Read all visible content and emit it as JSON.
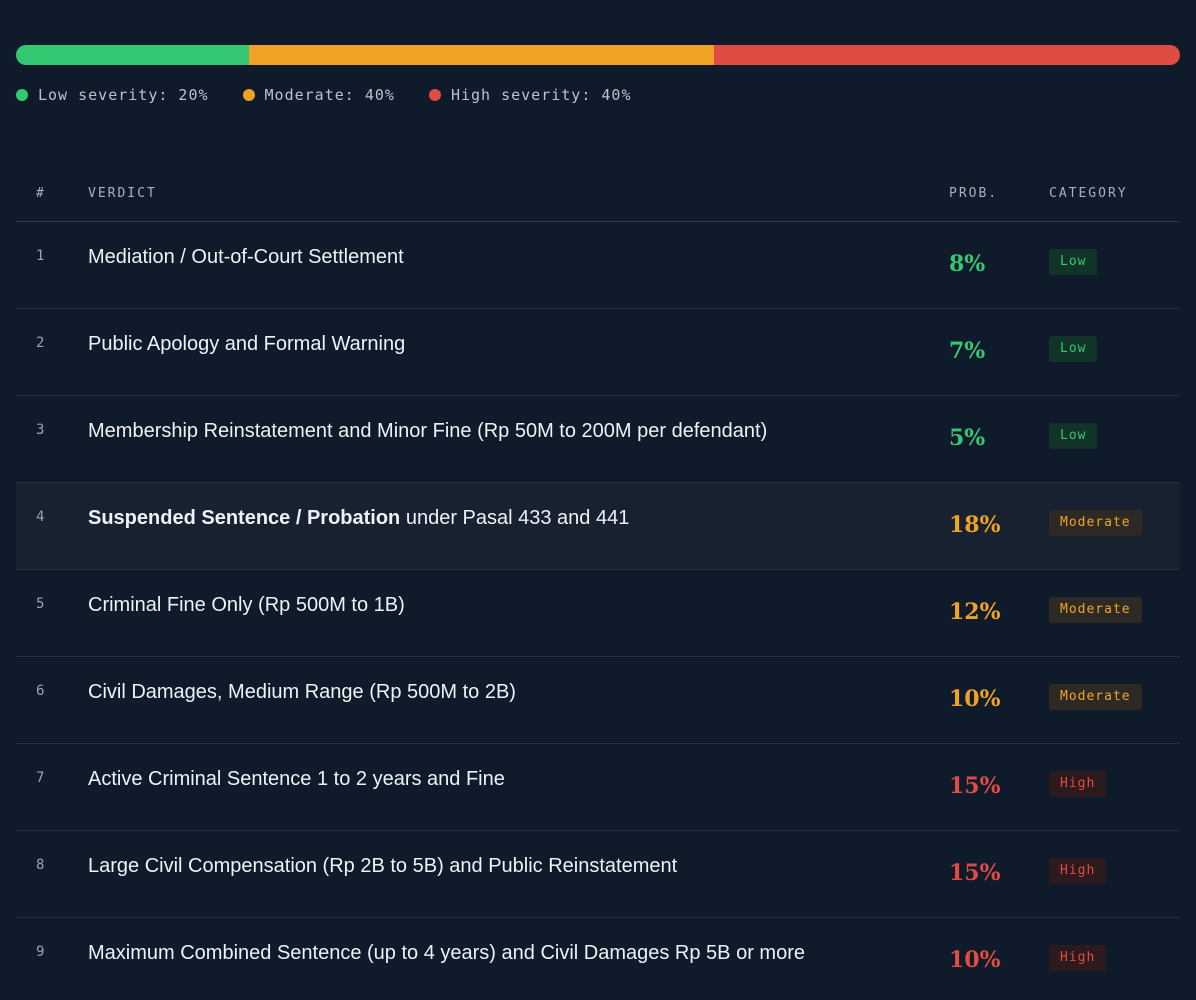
{
  "severity": {
    "segments": [
      {
        "key": "low",
        "label": "Low severity: 20%",
        "percent": 20,
        "color": "#35c873"
      },
      {
        "key": "moderate",
        "label": "Moderate: 40%",
        "percent": 40,
        "color": "#f0a225"
      },
      {
        "key": "high",
        "label": "High severity: 40%",
        "percent": 40,
        "color": "#e04b43"
      }
    ]
  },
  "table": {
    "headers": {
      "num": "#",
      "verdict": "VERDICT",
      "prob": "PROB.",
      "category": "CATEGORY"
    },
    "rows": [
      {
        "num": "1",
        "verdict_bold": "",
        "verdict": "Mediation / Out-of-Court Settlement",
        "prob": "8%",
        "category": "Low",
        "level": "low"
      },
      {
        "num": "2",
        "verdict_bold": "",
        "verdict": "Public Apology and Formal Warning",
        "prob": "7%",
        "category": "Low",
        "level": "low"
      },
      {
        "num": "3",
        "verdict_bold": "",
        "verdict": "Membership Reinstatement and Minor Fine (Rp 50M to 200M per defendant)",
        "prob": "5%",
        "category": "Low",
        "level": "low"
      },
      {
        "num": "4",
        "verdict_bold": "Suspended Sentence / Probation",
        "verdict": " under Pasal 433 and 441",
        "prob": "18%",
        "category": "Moderate",
        "level": "moderate",
        "highlighted": true
      },
      {
        "num": "5",
        "verdict_bold": "",
        "verdict": "Criminal Fine Only (Rp 500M to 1B)",
        "prob": "12%",
        "category": "Moderate",
        "level": "moderate"
      },
      {
        "num": "6",
        "verdict_bold": "",
        "verdict": "Civil Damages, Medium Range (Rp 500M to 2B)",
        "prob": "10%",
        "category": "Moderate",
        "level": "moderate"
      },
      {
        "num": "7",
        "verdict_bold": "",
        "verdict": "Active Criminal Sentence 1 to 2 years and Fine",
        "prob": "15%",
        "category": "High",
        "level": "high"
      },
      {
        "num": "8",
        "verdict_bold": "",
        "verdict": "Large Civil Compensation (Rp 2B to 5B) and Public Reinstatement",
        "prob": "15%",
        "category": "High",
        "level": "high"
      },
      {
        "num": "9",
        "verdict_bold": "",
        "verdict": "Maximum Combined Sentence (up to 4 years) and Civil Damages Rp 5B or more",
        "prob": "10%",
        "category": "High",
        "level": "high"
      }
    ]
  }
}
